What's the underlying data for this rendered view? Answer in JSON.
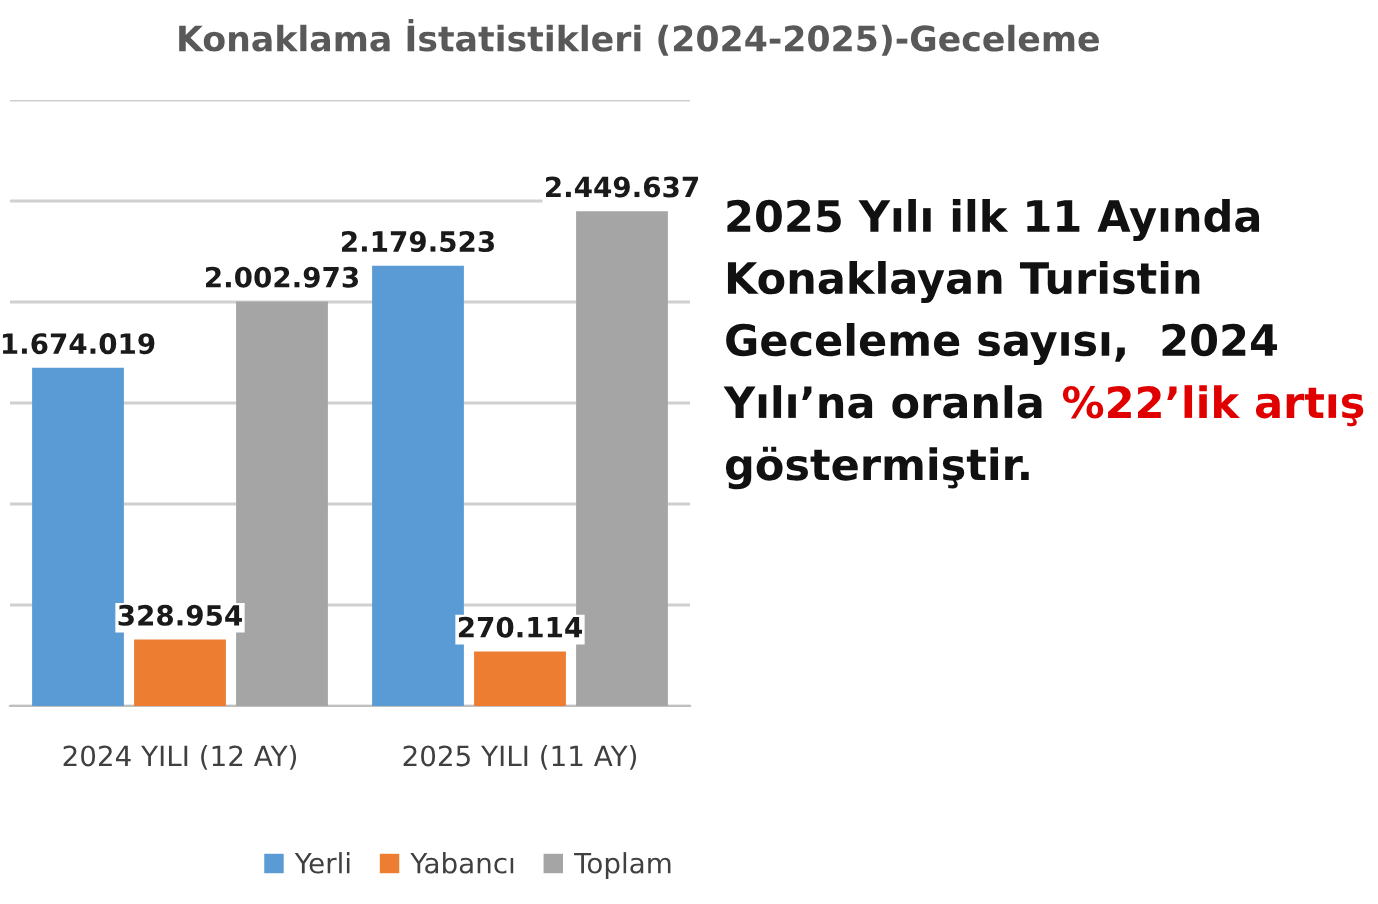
{
  "chart_data": {
    "type": "bar",
    "title": "Konaklama İstatistikleri (2024-2025)-Geceleme",
    "categories": [
      "2024 YILI (12 AY)",
      "2025 YILI (11 AY)"
    ],
    "series": [
      {
        "name": "Yerli",
        "color": "#5b9bd5",
        "values": [
          1674019,
          2179523
        ],
        "value_labels": [
          "1.674.019",
          "2.179.523"
        ]
      },
      {
        "name": "Yabancı",
        "color": "#ed7d31",
        "values": [
          328954,
          270114
        ],
        "value_labels": [
          "328.954",
          "270.114"
        ]
      },
      {
        "name": "Toplam",
        "color": "#a5a5a5",
        "values": [
          2002973,
          2449637
        ],
        "value_labels": [
          "2.002.973",
          "2.449.637"
        ]
      }
    ],
    "ylim": [
      0,
      3000000
    ],
    "yticks": [
      {
        "value": 0,
        "label": null
      },
      {
        "value": 500000,
        "label": null
      },
      {
        "value": 1000000,
        "label": null
      },
      {
        "value": 1500000,
        "label": null
      },
      {
        "value": 2000000,
        "label": null
      },
      {
        "value": 2500000,
        "label": null
      },
      {
        "value": 3000000,
        "label": null
      }
    ],
    "tick_labels": "x",
    "grid": "y",
    "legend": "bottom",
    "annotations": [
      "2025 Yılı ilk 11 Ayında",
      "Konaklayan Turistin",
      "Geceleme sayısı,  2024",
      "Yılı’na oranla",
      "%22’lik artış",
      "göstermiştir."
    ]
  }
}
